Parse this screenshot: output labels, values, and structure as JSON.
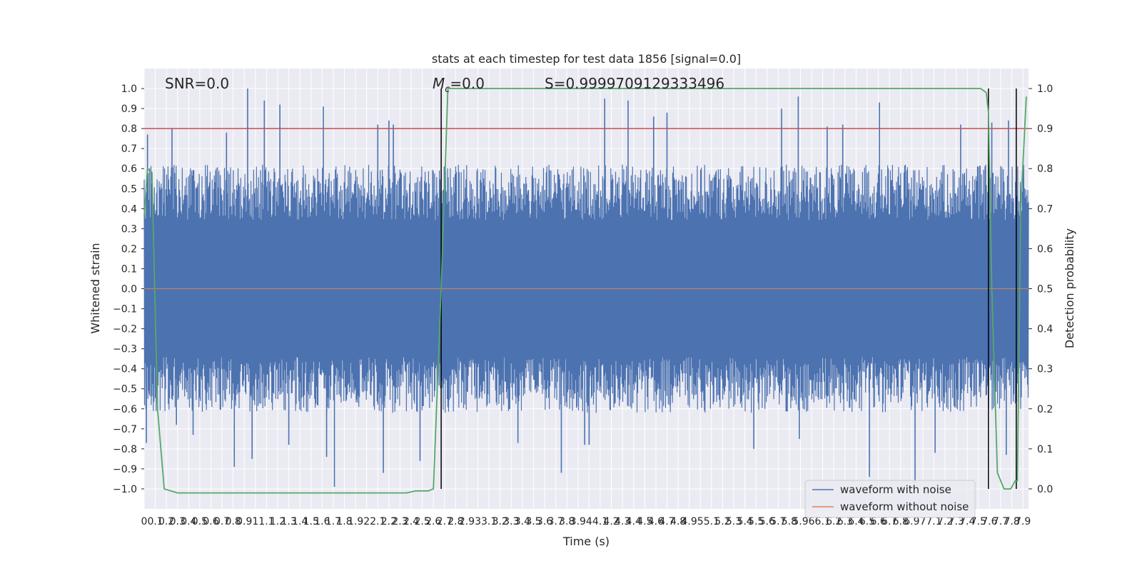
{
  "chart_data": {
    "type": "line",
    "title": "stats at each timestep for test data 1856 [signal=0.0]",
    "xlabel": "Time (s)",
    "ylabel": "Whitened strain",
    "y2label": "Detection probability",
    "xlim": [
      0.0,
      7.95
    ],
    "ylim": [
      -1.1,
      1.1
    ],
    "y2lim": [
      -0.05,
      1.05
    ],
    "xticks": [
      0.0,
      0.1,
      0.2,
      0.3,
      0.4,
      0.5,
      0.6,
      0.7,
      0.8,
      0.9,
      1.0,
      1.1,
      1.2,
      1.3,
      1.4,
      1.5,
      1.6,
      1.7,
      1.8,
      1.9,
      2.0,
      2.1,
      2.2,
      2.3,
      2.4,
      2.5,
      2.6,
      2.7,
      2.8,
      2.9,
      3.0,
      3.1,
      3.2,
      3.3,
      3.4,
      3.5,
      3.6,
      3.7,
      3.8,
      3.9,
      4.0,
      4.1,
      4.2,
      4.3,
      4.4,
      4.5,
      4.6,
      4.7,
      4.8,
      4.9,
      5.0,
      5.1,
      5.2,
      5.3,
      5.4,
      5.5,
      5.6,
      5.7,
      5.8,
      5.9,
      6.0,
      6.1,
      6.2,
      6.3,
      6.4,
      6.5,
      6.6,
      6.7,
      6.8,
      6.9,
      7.0,
      7.1,
      7.2,
      7.3,
      7.4,
      7.5,
      7.6,
      7.7,
      7.8,
      7.9
    ],
    "yticks": [
      -1.0,
      -0.9,
      -0.8,
      -0.7,
      -0.6,
      -0.5,
      -0.4,
      -0.3,
      -0.2,
      -0.1,
      0.0,
      0.1,
      0.2,
      0.3,
      0.4,
      0.5,
      0.6,
      0.7,
      0.8,
      0.9,
      1.0
    ],
    "y2ticks": [
      0.0,
      0.1,
      0.2,
      0.3,
      0.4,
      0.5,
      0.6,
      0.7,
      0.8,
      0.9,
      1.0
    ],
    "grid": true,
    "legend_position": "lower-right",
    "annotations": [
      {
        "text": "SNR=0.0",
        "x": 0.19,
        "y": 1.03
      },
      {
        "text": "M",
        "sub": "c",
        "rest": "=0.0",
        "x": 2.59,
        "y": 1.03
      },
      {
        "text": "S=0.9999709129333496",
        "x": 3.59,
        "y": 1.03
      }
    ],
    "threshold": {
      "y": 0.8,
      "color": "#c44e52"
    },
    "vertical_lines": [
      2.67,
      7.59,
      7.84
    ],
    "noise_waveform": {
      "name": "waveform with noise",
      "color": "#4c72b0",
      "amplitude": 0.62,
      "peaks": [
        {
          "x": 0.03,
          "y": 0.77
        },
        {
          "x": 0.02,
          "y": -0.77
        },
        {
          "x": 0.25,
          "y": 0.8
        },
        {
          "x": 0.29,
          "y": -0.68
        },
        {
          "x": 0.44,
          "y": -0.73
        },
        {
          "x": 0.74,
          "y": 0.78
        },
        {
          "x": 0.81,
          "y": -0.89
        },
        {
          "x": 0.93,
          "y": 1.0
        },
        {
          "x": 0.97,
          "y": -0.85
        },
        {
          "x": 1.08,
          "y": 0.94
        },
        {
          "x": 1.22,
          "y": 0.92
        },
        {
          "x": 1.3,
          "y": -0.78
        },
        {
          "x": 1.61,
          "y": 0.91
        },
        {
          "x": 1.64,
          "y": -0.84
        },
        {
          "x": 1.71,
          "y": -0.99
        },
        {
          "x": 2.1,
          "y": 0.82
        },
        {
          "x": 2.15,
          "y": -0.92
        },
        {
          "x": 2.2,
          "y": 0.84
        },
        {
          "x": 2.24,
          "y": 0.82
        },
        {
          "x": 2.48,
          "y": -0.86
        },
        {
          "x": 3.36,
          "y": -0.77
        },
        {
          "x": 3.75,
          "y": -0.92
        },
        {
          "x": 3.96,
          "y": -0.78
        },
        {
          "x": 4.0,
          "y": -0.78
        },
        {
          "x": 4.14,
          "y": 0.95
        },
        {
          "x": 4.35,
          "y": 0.94
        },
        {
          "x": 4.58,
          "y": 0.86
        },
        {
          "x": 4.7,
          "y": 0.88
        },
        {
          "x": 5.48,
          "y": -0.8
        },
        {
          "x": 5.73,
          "y": 0.9
        },
        {
          "x": 5.88,
          "y": 0.96
        },
        {
          "x": 5.89,
          "y": -0.75
        },
        {
          "x": 6.14,
          "y": 0.81
        },
        {
          "x": 6.28,
          "y": 0.82
        },
        {
          "x": 6.52,
          "y": -0.94
        },
        {
          "x": 6.61,
          "y": 0.93
        },
        {
          "x": 6.93,
          "y": -0.97
        },
        {
          "x": 7.11,
          "y": -0.82
        },
        {
          "x": 7.34,
          "y": 0.82
        },
        {
          "x": 7.62,
          "y": 0.83
        },
        {
          "x": 7.75,
          "y": -0.83
        },
        {
          "x": 7.77,
          "y": 0.84
        }
      ]
    },
    "clean_waveform": {
      "name": "waveform without noise",
      "color": "#dd8452",
      "values": []
    },
    "detection_probability": {
      "color": "#55a868",
      "x": [
        0.0,
        0.03,
        0.07,
        0.12,
        0.18,
        0.3,
        1.0,
        2.0,
        2.36,
        2.44,
        2.55,
        2.6,
        2.67,
        2.73,
        3.0,
        7.45,
        7.52,
        7.57,
        7.59,
        7.62,
        7.67,
        7.73,
        7.79,
        7.83,
        7.85,
        7.88,
        7.93
      ],
      "y": [
        0.68,
        0.8,
        0.79,
        0.2,
        0.0,
        -0.01,
        -0.01,
        -0.01,
        -0.01,
        -0.005,
        -0.005,
        0.0,
        0.5,
        1.0,
        1.0,
        1.0,
        1.0,
        0.99,
        0.94,
        0.5,
        0.04,
        0.0,
        0.0,
        0.02,
        0.02,
        0.7,
        0.98
      ]
    }
  }
}
